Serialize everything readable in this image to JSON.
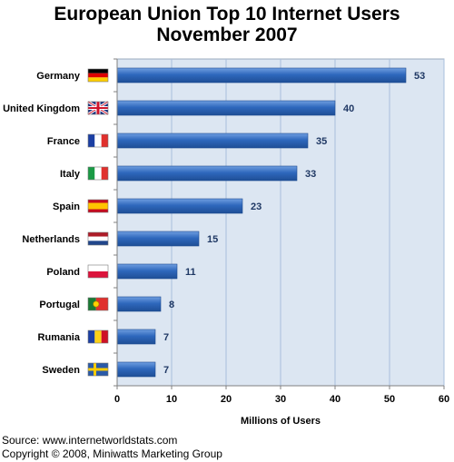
{
  "chart_data": {
    "type": "bar",
    "orientation": "horizontal",
    "title": "European Union Top 10 Internet Users",
    "subtitle": "November 2007",
    "categories": [
      "Germany",
      "United Kingdom",
      "France",
      "Italy",
      "Spain",
      "Netherlands",
      "Poland",
      "Portugal",
      "Rumania",
      "Sweden"
    ],
    "values": [
      53,
      40,
      35,
      33,
      23,
      15,
      11,
      8,
      7,
      7
    ],
    "flag_icons": [
      "germany-flag-icon",
      "united-kingdom-flag-icon",
      "france-flag-icon",
      "italy-flag-icon",
      "spain-flag-icon",
      "netherlands-flag-icon",
      "poland-flag-icon",
      "portugal-flag-icon",
      "rumania-flag-icon",
      "sweden-flag-icon"
    ],
    "xlabel": "Millions of Users",
    "ylabel": "",
    "xlim": [
      0,
      60
    ],
    "xticks": [
      0,
      10,
      20,
      30,
      40,
      50,
      60
    ],
    "grid": true,
    "legend": "none",
    "colors": {
      "bar": "#2f68bd",
      "bar_light": "#6f9ee0",
      "plot_bg": "#dce6f2",
      "grid": "#a9bfdc",
      "data_label": "#1f3864"
    }
  },
  "footer": {
    "source": "Source: www.internetworldstats.com",
    "copyright": "Copyright © 2008, Miniwatts Marketing Group"
  }
}
